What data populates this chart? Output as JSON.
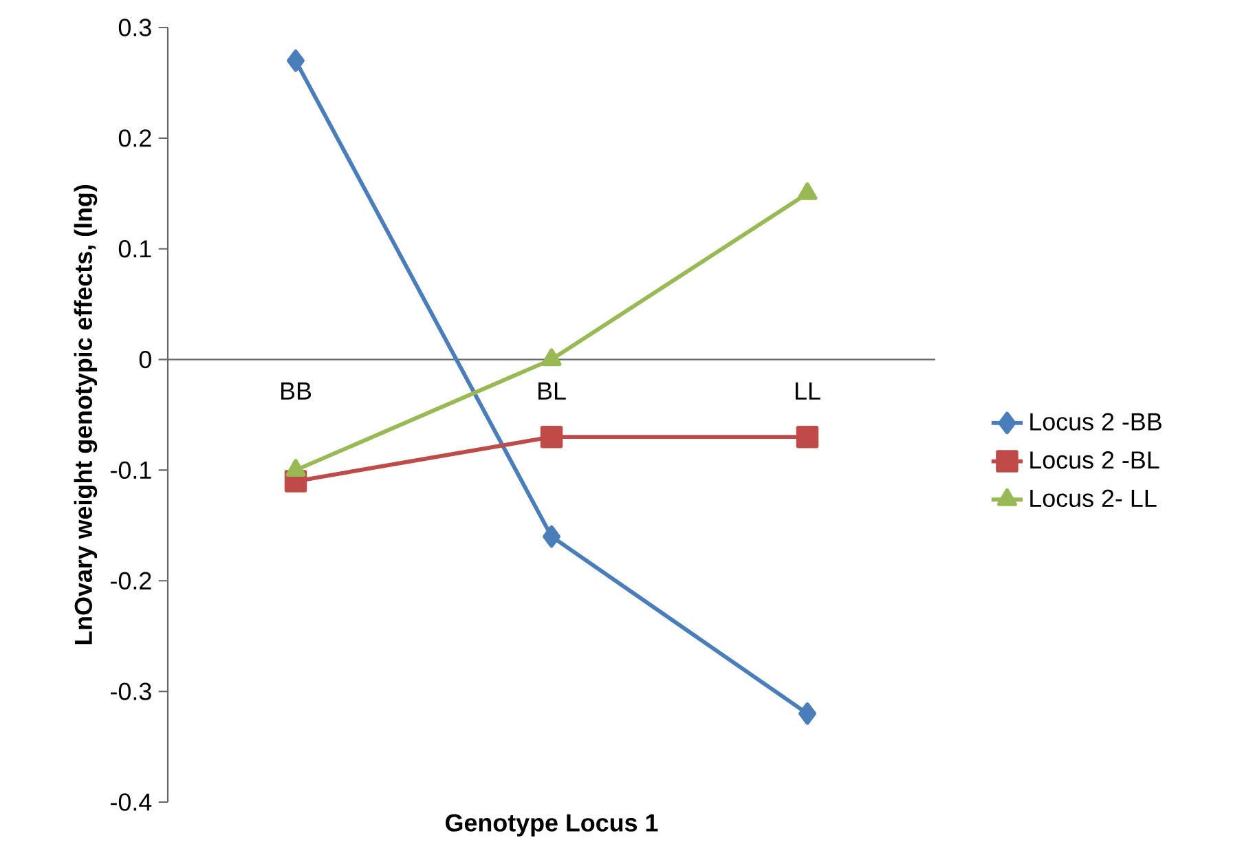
{
  "chart_data": {
    "type": "line",
    "xlabel": "Genotype Locus 1",
    "ylabel": "LnOvary weight genotypic effects, (lng)",
    "categories": [
      "BB",
      "BL",
      "LL"
    ],
    "series": [
      {
        "name": "Locus 2 -BB",
        "color": "#4a7ebb",
        "marker": "diamond",
        "values": [
          0.27,
          -0.16,
          -0.32
        ]
      },
      {
        "name": "Locus 2 -BL",
        "color": "#be4b48",
        "marker": "square",
        "values": [
          -0.11,
          -0.07,
          -0.07
        ]
      },
      {
        "name": "Locus 2- LL",
        "color": "#98b954",
        "marker": "triangle",
        "values": [
          -0.1,
          0.0,
          0.15
        ]
      }
    ],
    "ylim": [
      -0.4,
      0.3
    ],
    "yticks": [
      -0.4,
      -0.3,
      -0.2,
      -0.1,
      0,
      0.1,
      0.2,
      0.3
    ],
    "legend": "right",
    "line_style": "solid"
  }
}
